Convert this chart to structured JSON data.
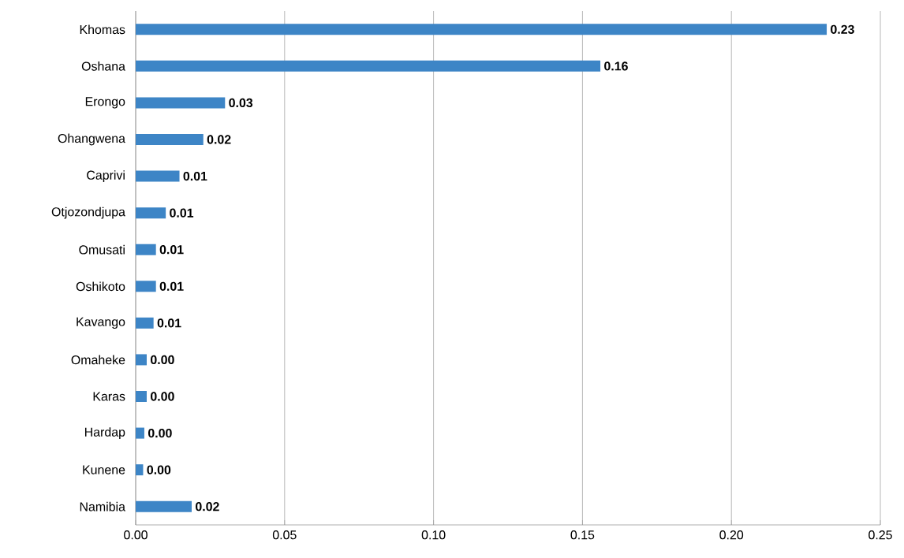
{
  "chart_data": {
    "type": "bar",
    "orientation": "horizontal",
    "categories": [
      "Khomas",
      "Oshana",
      "Erongo",
      "Ohangwena",
      "Caprivi",
      "Otjozondjupa",
      "Omusati",
      "Oshikoto",
      "Kavango",
      "Omaheke",
      "Karas",
      "Hardap",
      "Kunene",
      "Namibia"
    ],
    "values": [
      0.232,
      0.156,
      0.03,
      0.0227,
      0.0147,
      0.0101,
      0.0068,
      0.0068,
      0.006,
      0.0037,
      0.0037,
      0.0029,
      0.0025,
      0.0188
    ],
    "value_labels": [
      "0.23",
      "0.16",
      "0.03",
      "0.02",
      "0.01",
      "0.01",
      "0.01",
      "0.01",
      "0.01",
      "0.00",
      "0.00",
      "0.00",
      "0.00",
      "0.02"
    ],
    "color": "#3d85c6",
    "xlim": [
      0,
      0.25
    ],
    "xticks": [
      {
        "value": 0,
        "label": "0.00"
      },
      {
        "value": 0.05,
        "label": "0.05"
      },
      {
        "value": 0.1,
        "label": "0.10"
      },
      {
        "value": 0.15,
        "label": "0.15"
      },
      {
        "value": 0.2,
        "label": "0.20"
      },
      {
        "value": 0.25,
        "label": "0.25"
      }
    ],
    "grid": "x"
  }
}
